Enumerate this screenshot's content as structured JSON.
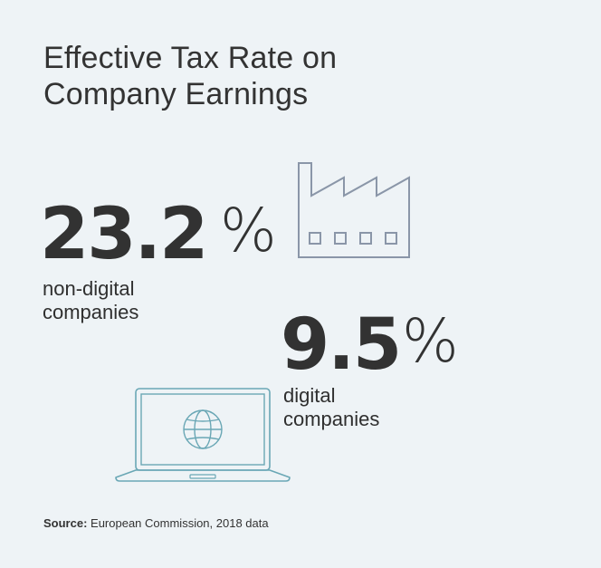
{
  "title_line1": "Effective Tax Rate on",
  "title_line2": "Company Earnings",
  "stats": [
    {
      "value": "23.2",
      "percent": "%",
      "label_line1": "non-digital",
      "label_line2": "companies",
      "icon": "factory-icon"
    },
    {
      "value": "9.5",
      "percent": "%",
      "label_line1": "digital",
      "label_line2": "companies",
      "icon": "laptop-globe-icon"
    }
  ],
  "source": {
    "label": "Source:",
    "text": "European Commission, 2018 data"
  },
  "colors": {
    "background": "#eef3f6",
    "text": "#323232",
    "factory_stroke": "#8a96a8",
    "laptop_stroke": "#6aa7b5"
  }
}
